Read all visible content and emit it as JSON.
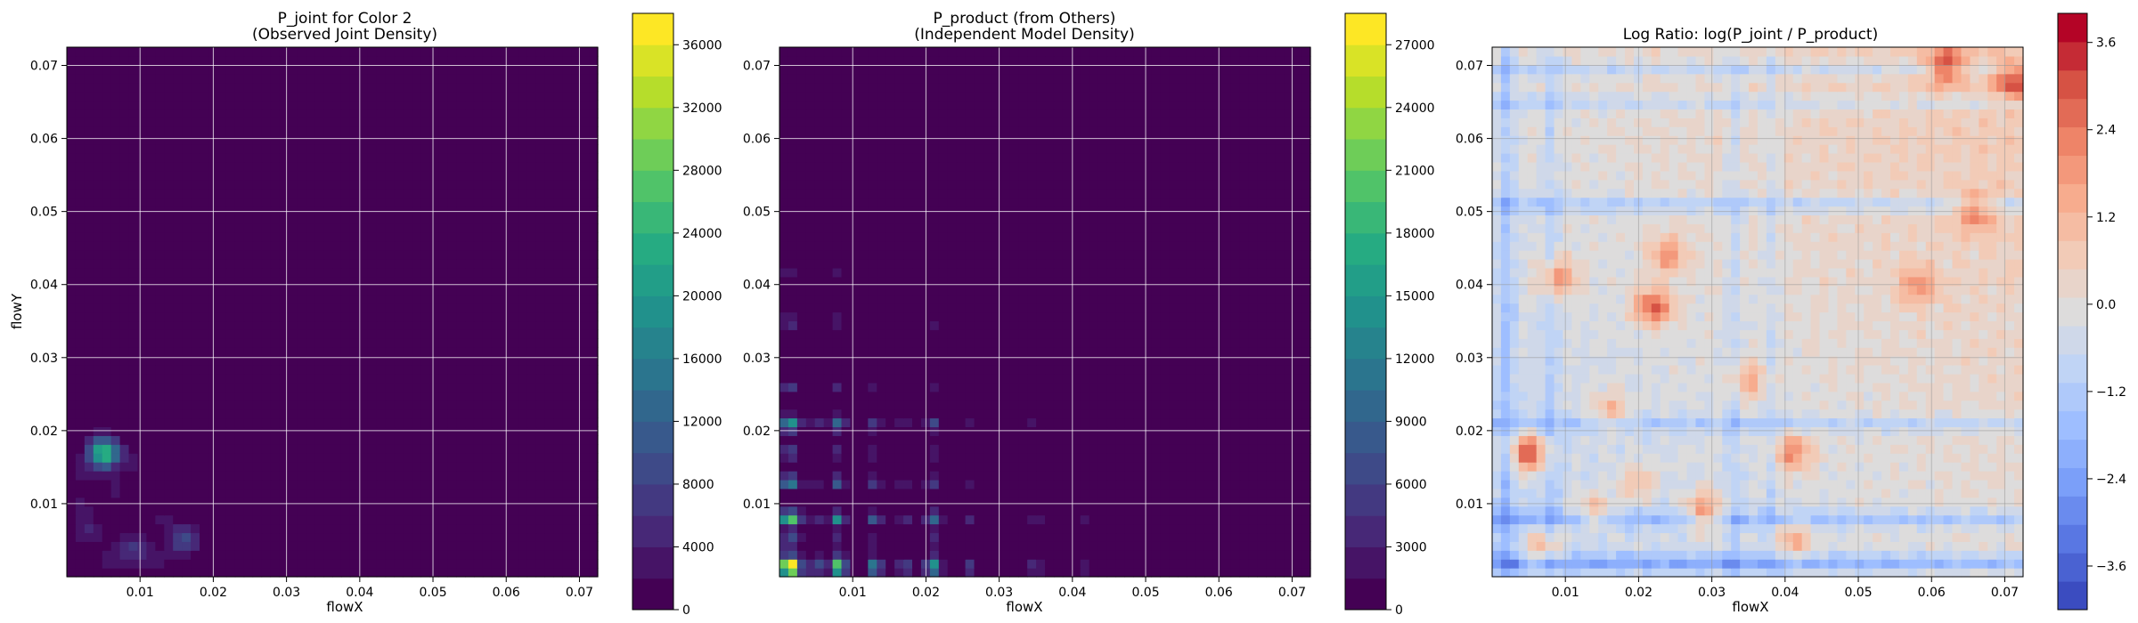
{
  "chart_data": [
    {
      "type": "heatmap",
      "title_lines": [
        "P_joint for Color 2",
        "(Observed Joint Density)"
      ],
      "xlabel": "flowX",
      "ylabel": "flowY",
      "xlim": [
        0,
        0.0725
      ],
      "ylim": [
        0,
        0.0725
      ],
      "xticks": [
        "0.01",
        "0.02",
        "0.03",
        "0.04",
        "0.05",
        "0.06",
        "0.07"
      ],
      "yticks": [
        "0.01",
        "0.02",
        "0.03",
        "0.04",
        "0.05",
        "0.06",
        "0.07"
      ],
      "grid": true,
      "colormap": "viridis",
      "colorbar_range": [
        0,
        38000
      ],
      "colorbar_ticks": [
        "0",
        "4000",
        "8000",
        "12000",
        "16000",
        "20000",
        "24000",
        "28000",
        "32000",
        "36000"
      ],
      "hotspots": [
        {
          "x": 0.005,
          "y": 0.017,
          "value": 26000
        },
        {
          "x": 0.016,
          "y": 0.005,
          "value": 9000
        },
        {
          "x": 0.009,
          "y": 0.004,
          "value": 6000
        },
        {
          "x": 0.003,
          "y": 0.006,
          "value": 4000
        },
        {
          "x": 0.002,
          "y": 0.009,
          "value": 3000
        },
        {
          "x": 0.007,
          "y": 0.012,
          "value": 2500
        },
        {
          "x": 0.013,
          "y": 0.008,
          "value": 2500
        },
        {
          "x": 0.009,
          "y": 0.016,
          "value": 2500
        },
        {
          "x": 0.004,
          "y": 0.024,
          "value": 2000
        },
        {
          "x": 0.012,
          "y": 0.002,
          "value": 3000
        },
        {
          "x": 0.018,
          "y": 0.013,
          "value": 2000
        },
        {
          "x": 0.006,
          "y": 0.002,
          "value": 3000
        },
        {
          "x": 0.002,
          "y": 0.014,
          "value": 2000
        },
        {
          "x": 0.024,
          "y": 0.003,
          "value": 1500
        },
        {
          "x": 0.029,
          "y": 0.009,
          "value": 1500
        },
        {
          "x": 0.011,
          "y": 0.021,
          "value": 1500
        },
        {
          "x": 0.008,
          "y": 0.039,
          "value": 1200
        },
        {
          "x": 0.021,
          "y": 0.019,
          "value": 1000
        }
      ]
    },
    {
      "type": "heatmap",
      "title_lines": [
        "P_product (from Others)",
        "(Independent Model Density)"
      ],
      "xlabel": "flowX",
      "ylabel": "",
      "xlim": [
        0,
        0.0725
      ],
      "ylim": [
        0,
        0.0725
      ],
      "xticks": [
        "0.01",
        "0.02",
        "0.03",
        "0.04",
        "0.05",
        "0.06",
        "0.07"
      ],
      "yticks": [
        "0.01",
        "0.02",
        "0.03",
        "0.04",
        "0.05",
        "0.06",
        "0.07"
      ],
      "grid": true,
      "colormap": "viridis",
      "colorbar_range": [
        0,
        28500
      ],
      "colorbar_ticks": [
        "0",
        "3000",
        "6000",
        "9000",
        "12000",
        "15000",
        "18000",
        "21000",
        "24000",
        "27000"
      ],
      "marginal_peaks": [
        {
          "pos": 0.001,
          "weight": 1.0
        },
        {
          "pos": 0.002,
          "weight": 0.9
        },
        {
          "pos": 0.008,
          "weight": 0.95
        },
        {
          "pos": 0.013,
          "weight": 0.6
        },
        {
          "pos": 0.021,
          "weight": 0.7
        },
        {
          "pos": 0.005,
          "weight": 0.35
        },
        {
          "pos": 0.017,
          "weight": 0.3
        },
        {
          "pos": 0.026,
          "weight": 0.25
        },
        {
          "pos": 0.035,
          "weight": 0.2
        },
        {
          "pos": 0.042,
          "weight": 0.15
        }
      ]
    },
    {
      "type": "heatmap",
      "title_lines": [
        "Log Ratio: log(P_joint / P_product)"
      ],
      "xlabel": "flowX",
      "ylabel": "",
      "xlim": [
        0,
        0.0725
      ],
      "ylim": [
        0,
        0.0725
      ],
      "xticks": [
        "0.01",
        "0.02",
        "0.03",
        "0.04",
        "0.05",
        "0.06",
        "0.07"
      ],
      "yticks": [
        "0.01",
        "0.02",
        "0.03",
        "0.04",
        "0.05",
        "0.06",
        "0.07"
      ],
      "grid": true,
      "colormap": "coolwarm",
      "colorbar_range": [
        -4.2,
        4.0
      ],
      "colorbar_ticks": [
        "−3.6",
        "−2.4",
        "−1.2",
        "0.0",
        "1.2",
        "2.4",
        "3.6"
      ],
      "colorbar_tick_values": [
        -3.6,
        -2.4,
        -1.2,
        0.0,
        1.2,
        2.4,
        3.6
      ],
      "hotspots": [
        {
          "x": 0.005,
          "y": 0.017,
          "value": 3.4
        },
        {
          "x": 0.022,
          "y": 0.037,
          "value": 3.0
        },
        {
          "x": 0.029,
          "y": 0.009,
          "value": 2.4
        },
        {
          "x": 0.041,
          "y": 0.017,
          "value": 2.2
        },
        {
          "x": 0.009,
          "y": 0.041,
          "value": 2.4
        },
        {
          "x": 0.024,
          "y": 0.044,
          "value": 2.0
        },
        {
          "x": 0.007,
          "y": 0.004,
          "value": 2.0
        },
        {
          "x": 0.041,
          "y": 0.005,
          "value": 1.6
        },
        {
          "x": 0.062,
          "y": 0.07,
          "value": 2.8
        },
        {
          "x": 0.071,
          "y": 0.068,
          "value": 2.6
        },
        {
          "x": 0.066,
          "y": 0.05,
          "value": 2.0
        },
        {
          "x": 0.058,
          "y": 0.04,
          "value": 1.8
        },
        {
          "x": 0.035,
          "y": 0.027,
          "value": 1.6
        },
        {
          "x": 0.016,
          "y": 0.023,
          "value": 1.5
        },
        {
          "x": 0.014,
          "y": 0.009,
          "value": 1.6
        },
        {
          "x": 0.02,
          "y": 0.013,
          "value": 1.4
        }
      ],
      "bands": [
        {
          "axis": "y",
          "pos": 0.002,
          "value": -2.8
        },
        {
          "axis": "y",
          "pos": 0.008,
          "value": -2.2
        },
        {
          "axis": "y",
          "pos": 0.021,
          "value": -1.6
        },
        {
          "axis": "y",
          "pos": 0.051,
          "value": -1.8
        },
        {
          "axis": "y",
          "pos": 0.065,
          "value": -1.4
        },
        {
          "axis": "y",
          "pos": 0.0695,
          "value": -1.6
        },
        {
          "axis": "x",
          "pos": 0.002,
          "value": -1.8
        },
        {
          "axis": "x",
          "pos": 0.008,
          "value": -1.2
        },
        {
          "axis": "x",
          "pos": 0.033,
          "value": -1.2
        },
        {
          "axis": "x",
          "pos": 0.038,
          "value": -1.0
        }
      ]
    }
  ]
}
